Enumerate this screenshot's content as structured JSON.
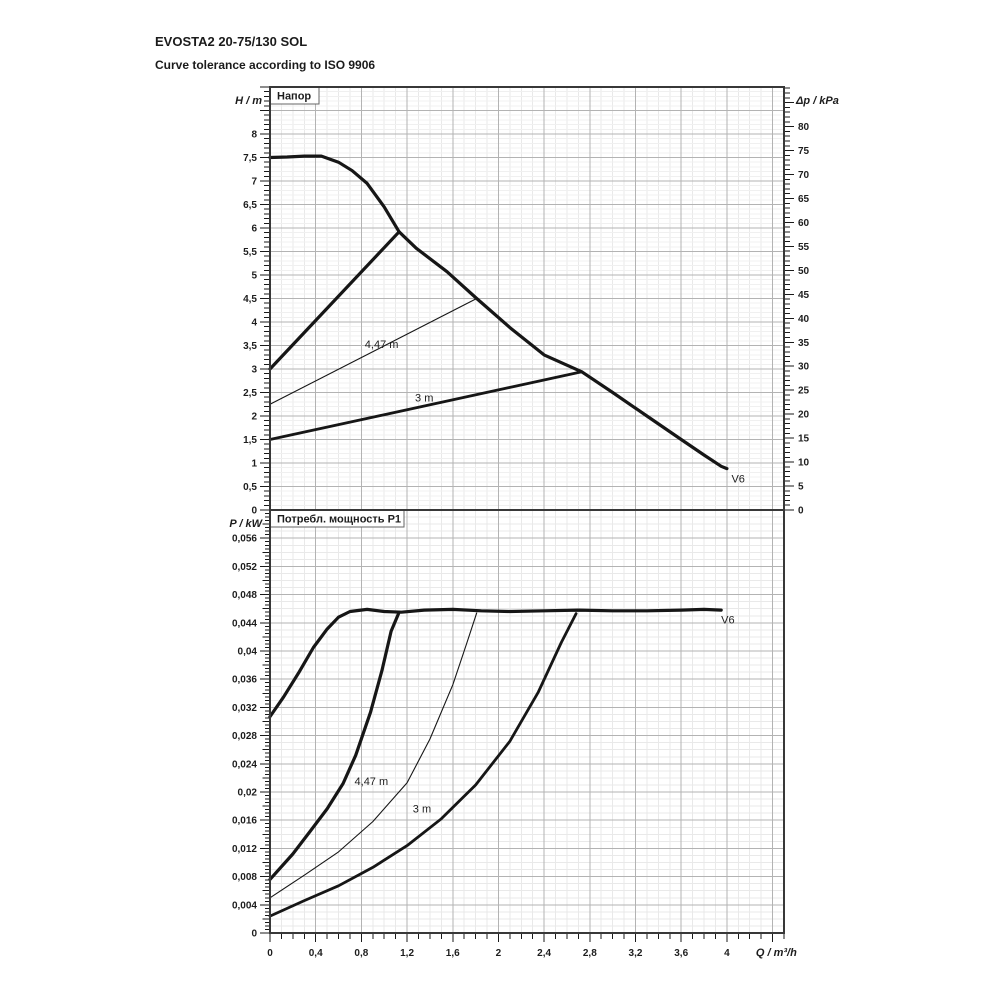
{
  "header": {
    "title": "EVOSTA2 20-75/130 SOL",
    "subtitle": "Curve tolerance according to ISO 9906"
  },
  "colors": {
    "curve": "#161616",
    "grid_minor": "#e9e9e9",
    "grid_minor_fine": "#f0f0f0",
    "grid_major": "#b3b3b3",
    "border": "#383838",
    "tick": "#1a1a1a",
    "text": "#1d1d1d"
  },
  "chart_data": [
    {
      "type": "line",
      "title": "Напор",
      "ylabel": "H / m",
      "ylabel_right": "Δp / kPa",
      "xlabel": "Q / m³/h",
      "xlim": [
        0,
        4.5
      ],
      "ylim": [
        0,
        9
      ],
      "grid": {
        "x_minor": 0.1,
        "x_major": 0.4,
        "y_minor": 0.1,
        "y_major": 0.5
      },
      "x_ticks": {
        "values": [
          0,
          0.4,
          0.8,
          1.2,
          1.6,
          2,
          2.4,
          2.8,
          3.2,
          3.6,
          4
        ],
        "labels": [
          "0",
          "0,4",
          "0,8",
          "1,2",
          "1,6",
          "2",
          "2,4",
          "2,8",
          "3,2",
          "3,6",
          "4"
        ]
      },
      "y_ticks": {
        "values": [
          0,
          0.5,
          1,
          1.5,
          2,
          2.5,
          3,
          3.5,
          4,
          4.5,
          5,
          5.5,
          6,
          6.5,
          7,
          7.5,
          8
        ],
        "labels": [
          "0",
          "0,5",
          "1",
          "1,5",
          "2",
          "2,5",
          "3",
          "3,5",
          "4",
          "4,5",
          "5",
          "5,5",
          "6",
          "6,5",
          "7",
          "7,5",
          "8"
        ]
      },
      "right_ticks": {
        "values": [
          0,
          5,
          10,
          15,
          20,
          25,
          30,
          35,
          40,
          45,
          50,
          55,
          60,
          65,
          70,
          75,
          80
        ],
        "labels": [
          "0",
          "5",
          "10",
          "15",
          "20",
          "25",
          "30",
          "35",
          "40",
          "45",
          "50",
          "55",
          "60",
          "65",
          "70",
          "75",
          "80"
        ],
        "kpa_per_m": 9.80665
      },
      "series": [
        {
          "name": "V6-head-curve",
          "width": 3.2,
          "points": [
            [
              0,
              7.5
            ],
            [
              0.15,
              7.51
            ],
            [
              0.3,
              7.53
            ],
            [
              0.45,
              7.53
            ],
            [
              0.6,
              7.4
            ],
            [
              0.72,
              7.22
            ],
            [
              0.85,
              6.95
            ],
            [
              1.0,
              6.45
            ],
            [
              1.13,
              5.92
            ],
            [
              1.28,
              5.57
            ],
            [
              1.55,
              5.07
            ],
            [
              1.81,
              4.5
            ],
            [
              2.1,
              3.88
            ],
            [
              2.4,
              3.3
            ],
            [
              2.73,
              2.94
            ],
            [
              3.0,
              2.5
            ],
            [
              3.3,
              2.0
            ],
            [
              3.6,
              1.5
            ],
            [
              3.8,
              1.17
            ],
            [
              3.95,
              0.93
            ],
            [
              4.0,
              0.88
            ]
          ]
        },
        {
          "name": "max-proportional-curve",
          "width": 3.2,
          "points": [
            [
              0,
              3.0
            ],
            [
              1.13,
              5.92
            ]
          ]
        },
        {
          "name": "setpoint-4.47m-curve",
          "width": 1.1,
          "points": [
            [
              0,
              2.25
            ],
            [
              1.81,
              4.5
            ]
          ]
        },
        {
          "name": "setpoint-3m-curve",
          "width": 2.8,
          "points": [
            [
              0,
              1.5
            ],
            [
              2.73,
              2.94
            ]
          ]
        }
      ],
      "annotations": [
        {
          "text": "4,47 m",
          "x": 0.83,
          "y": 3.52
        },
        {
          "text": "3 m",
          "x": 1.27,
          "y": 2.38
        },
        {
          "text": "V6",
          "x": 4.04,
          "y": 0.66
        }
      ]
    },
    {
      "type": "line",
      "title": "Потребл. мощность P1",
      "ylabel": "P / kW",
      "xlabel": "Q / m³/h",
      "xlim": [
        0,
        4.5
      ],
      "ylim": [
        0,
        0.06
      ],
      "grid": {
        "x_minor": 0.1,
        "x_major": 0.4,
        "y_minor": 0.001,
        "y_major": 0.004
      },
      "x_ticks": {
        "values": [
          0,
          0.4,
          0.8,
          1.2,
          1.6,
          2,
          2.4,
          2.8,
          3.2,
          3.6,
          4
        ],
        "labels": [
          "0",
          "0,4",
          "0,8",
          "1,2",
          "1,6",
          "2",
          "2,4",
          "2,8",
          "3,2",
          "3,6",
          "4"
        ]
      },
      "y_ticks": {
        "values": [
          0,
          0.004,
          0.008,
          0.012,
          0.016,
          0.02,
          0.024,
          0.028,
          0.032,
          0.036,
          0.04,
          0.044,
          0.048,
          0.052,
          0.056
        ],
        "labels": [
          "0",
          "0,004",
          "0,008",
          "0,012",
          "0,016",
          "0,02",
          "0,024",
          "0,028",
          "0,032",
          "0,036",
          "0,04",
          "0,044",
          "0,048",
          "0,052",
          "0,056"
        ]
      },
      "series": [
        {
          "name": "V6-power-curve",
          "width": 3.2,
          "points": [
            [
              0,
              0.0307
            ],
            [
              0.12,
              0.0335
            ],
            [
              0.25,
              0.0369
            ],
            [
              0.38,
              0.0405
            ],
            [
              0.5,
              0.0431
            ],
            [
              0.6,
              0.0448
            ],
            [
              0.7,
              0.0456
            ],
            [
              0.85,
              0.0459
            ],
            [
              1.0,
              0.0456
            ],
            [
              1.15,
              0.0455
            ],
            [
              1.35,
              0.0458
            ],
            [
              1.6,
              0.0459
            ],
            [
              1.85,
              0.0457
            ],
            [
              2.1,
              0.0456
            ],
            [
              2.4,
              0.0457
            ],
            [
              2.7,
              0.0458
            ],
            [
              3.0,
              0.0457
            ],
            [
              3.3,
              0.0457
            ],
            [
              3.6,
              0.0458
            ],
            [
              3.8,
              0.0459
            ],
            [
              3.95,
              0.0458
            ]
          ]
        },
        {
          "name": "max-proportional-power",
          "width": 3.2,
          "points": [
            [
              0,
              0.0076
            ],
            [
              0.2,
              0.0112
            ],
            [
              0.35,
              0.0144
            ],
            [
              0.5,
              0.0176
            ],
            [
              0.64,
              0.0212
            ],
            [
              0.75,
              0.0252
            ],
            [
              0.88,
              0.0313
            ],
            [
              0.98,
              0.0372
            ],
            [
              1.06,
              0.0428
            ],
            [
              1.13,
              0.0455
            ]
          ]
        },
        {
          "name": "setpoint-4.47m-power",
          "width": 1.1,
          "points": [
            [
              0,
              0.005
            ],
            [
              0.3,
              0.0082
            ],
            [
              0.6,
              0.0115
            ],
            [
              0.9,
              0.0158
            ],
            [
              1.2,
              0.0213
            ],
            [
              1.4,
              0.0275
            ],
            [
              1.6,
              0.0352
            ],
            [
              1.72,
              0.041
            ],
            [
              1.81,
              0.0454
            ]
          ]
        },
        {
          "name": "setpoint-3m-power",
          "width": 2.8,
          "points": [
            [
              0,
              0.0024
            ],
            [
              0.3,
              0.0046
            ],
            [
              0.6,
              0.0067
            ],
            [
              0.9,
              0.0093
            ],
            [
              1.2,
              0.0124
            ],
            [
              1.5,
              0.0162
            ],
            [
              1.8,
              0.021
            ],
            [
              2.1,
              0.0272
            ],
            [
              2.35,
              0.0342
            ],
            [
              2.55,
              0.0412
            ],
            [
              2.68,
              0.0453
            ]
          ]
        }
      ],
      "annotations": [
        {
          "text": "4,47 m",
          "x": 0.74,
          "y": 0.0215
        },
        {
          "text": "3 m",
          "x": 1.25,
          "y": 0.0176
        },
        {
          "text": "V6",
          "x": 3.95,
          "y": 0.0444
        }
      ]
    }
  ]
}
